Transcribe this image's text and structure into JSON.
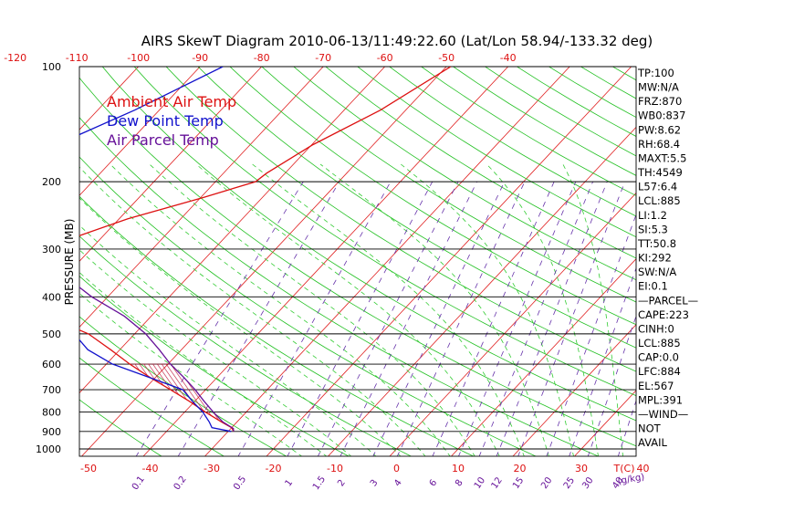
{
  "chart_data": {
    "type": "line",
    "title": "AIRS SkewT Diagram 2010-06-13/11:49:22.60 (Lat/Lon 58.94/-133.32 deg)",
    "ylabel": "PRESSURE (MB)",
    "bottom_axis_unit": "T(C)",
    "mixing_ratio_unit": "(g/kg)",
    "p_range": [
      1000,
      100
    ],
    "t_range_bottom": [
      -50,
      40
    ],
    "top_ticks": [
      "-120",
      "-110",
      "-100",
      "-90",
      "-80",
      "-70",
      "-60",
      "-50",
      "-40"
    ],
    "bottom_ticks": [
      "-50",
      "-40",
      "-30",
      "-20",
      "-10",
      "0",
      "10",
      "20",
      "30",
      "40"
    ],
    "pressure_ticks": [
      "100",
      "200",
      "300",
      "400",
      "500",
      "600",
      "700",
      "800",
      "900",
      "1000"
    ],
    "mixing_ratio_ticks": [
      "0.1",
      "0.2",
      "0.5",
      "1",
      "1.5",
      "2",
      "3",
      "4",
      "6",
      "8",
      "10",
      "12",
      "15",
      "20",
      "25",
      "30",
      "40"
    ],
    "legend": [
      {
        "name": "Ambient Air Temp",
        "color": "#dd1111"
      },
      {
        "name": "Dew Point Temp",
        "color": "#1111cc"
      },
      {
        "name": "Air Parcel Temp",
        "color": "#661199"
      }
    ],
    "series": [
      {
        "name": "Ambient Air Temp",
        "p": [
          100,
          130,
          160,
          190,
          200,
          220,
          250,
          280,
          300,
          350,
          400,
          450,
          500,
          550,
          600,
          650,
          700,
          750,
          800,
          850,
          880,
          900
        ],
        "t": [
          -49.3,
          -54.1,
          -59.8,
          -63.0,
          -63.5,
          -69.6,
          -78.6,
          -84.5,
          -86.6,
          -84.5,
          -82.8,
          -76.8,
          -67.5,
          -61.5,
          -56.2,
          -50.9,
          -45.7,
          -40.9,
          -36.7,
          -32.5,
          -30.0,
          -29.1
        ]
      },
      {
        "name": "Dew Point Temp",
        "p": [
          100,
          130,
          160,
          190,
          200,
          250,
          300,
          400,
          450,
          500,
          550,
          600,
          650,
          700,
          750,
          800,
          850,
          880,
          900
        ],
        "t": [
          -86.3,
          -94.0,
          -101.4,
          -104.3,
          -101.4,
          -94.2,
          -88.3,
          -78.3,
          -74.5,
          -69.8,
          -65.2,
          -59.0,
          -51.0,
          -43.7,
          -40.4,
          -37.1,
          -34.5,
          -33.2,
          -29.5
        ]
      },
      {
        "name": "Air Parcel Temp",
        "p": [
          100,
          150,
          200,
          250,
          300,
          350,
          400,
          450,
          500,
          550,
          600,
          650,
          700,
          750,
          800,
          850,
          884,
          900
        ],
        "t": [
          -116.0,
          -112.3,
          -106.7,
          -98.6,
          -88.3,
          -80.6,
          -72.6,
          -64.3,
          -58.2,
          -53.6,
          -49.6,
          -45.4,
          -41.7,
          -38.5,
          -35.4,
          -32.3,
          -29.6,
          -29.1
        ]
      }
    ]
  },
  "indices": [
    "TP:100",
    "MW:N/A",
    "FRZ:870",
    "WB0:837",
    "PW:8.62",
    "RH:68.4",
    "MAXT:5.5",
    "TH:4549",
    "L57:6.4",
    "LCL:885",
    "LI:1.2",
    "SI:5.3",
    "TT:50.8",
    "KI:292",
    "SW:N/A",
    "EI:0.1",
    "—PARCEL—",
    "CAPE:223",
    "CINH:0",
    "LCL:885",
    "CAP:0.0",
    "LFC:884",
    "EL:567",
    "MPL:391",
    "—WIND—",
    "NOT",
    "AVAIL"
  ]
}
